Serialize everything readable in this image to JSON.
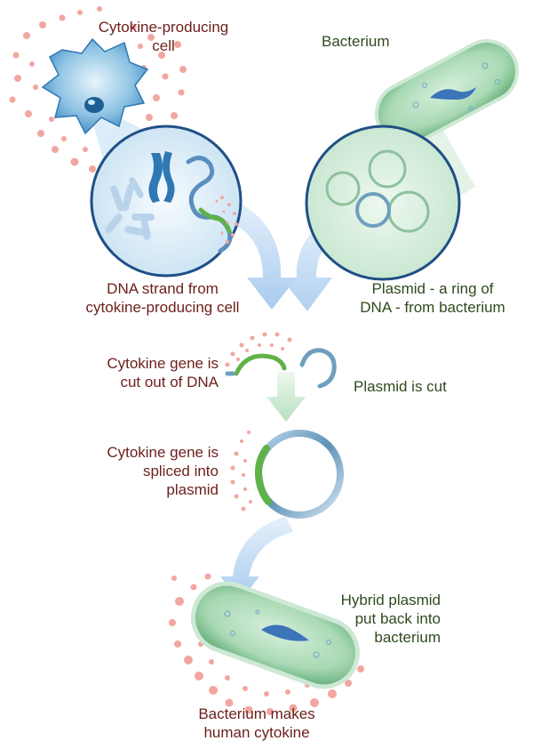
{
  "colors": {
    "cytokine_label": "#6b1f1a",
    "bacterium_label": "#2f4a1f",
    "dots": "#f2a6a0",
    "bacterium_fill": "#a9d9b4",
    "circle_border": "#1f4f86",
    "arrow_fill": "#cfe3f7",
    "gene_green": "#5fb248",
    "plasmid_blue": "#6f9fbf"
  },
  "labels": {
    "cytokine_cell": [
      "Cytokine-producing",
      "cell"
    ],
    "bacterium": "Bacterium",
    "dna_strand": [
      "DNA strand from",
      "cytokine-producing cell"
    ],
    "plasmid": [
      "Plasmid - a ring of",
      "DNA - from bacterium"
    ],
    "gene_cut": [
      "Cytokine gene is",
      "cut out of DNA"
    ],
    "plasmid_cut": "Plasmid is cut",
    "gene_spliced": [
      "Cytokine gene is",
      "spliced into",
      "plasmid"
    ],
    "hybrid": [
      "Hybrid plasmid",
      "put back into",
      "bacterium"
    ],
    "result": [
      "Bacterium makes",
      "human cytokine"
    ]
  },
  "icons": {
    "cell": "cytokine-producing-cell-icon",
    "bacterium_top": "bacterium-icon",
    "dna_magnified": "dna-magnified-circle",
    "plasmid_magnified": "plasmid-magnified-circle",
    "bacterium_bottom": "engineered-bacterium-icon"
  }
}
